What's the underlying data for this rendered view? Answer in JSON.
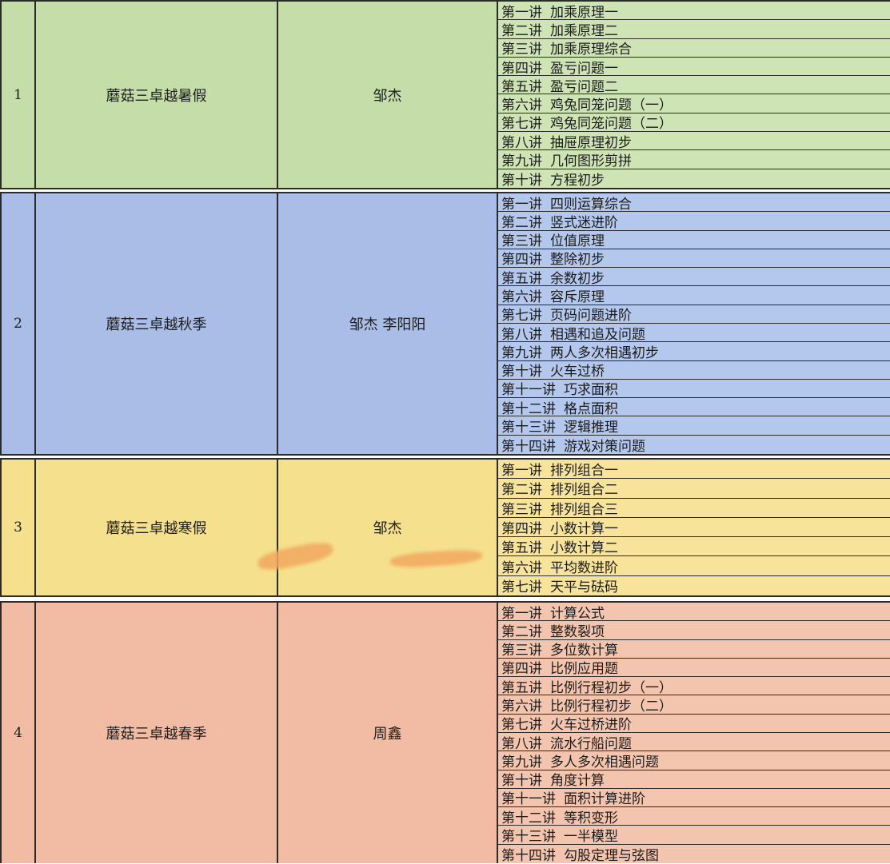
{
  "rows": [
    {
      "num": "1",
      "course": "蘑菇三卓越暑假",
      "teacher": "邹杰",
      "lessons": [
        {
          "no": "第一讲",
          "title": "加乘原理一"
        },
        {
          "no": "第二讲",
          "title": "加乘原理二"
        },
        {
          "no": "第三讲",
          "title": "加乘原理综合"
        },
        {
          "no": "第四讲",
          "title": "盈亏问题一"
        },
        {
          "no": "第五讲",
          "title": "盈亏问题二"
        },
        {
          "no": "第六讲",
          "title": "鸡兔同笼问题（一）"
        },
        {
          "no": "第七讲",
          "title": "鸡兔同笼问题（二）"
        },
        {
          "no": "第八讲",
          "title": "抽屉原理初步"
        },
        {
          "no": "第九讲",
          "title": "几何图形剪拼"
        },
        {
          "no": "第十讲",
          "title": "方程初步"
        }
      ]
    },
    {
      "num": "2",
      "course": "蘑菇三卓越秋季",
      "teacher": "邹杰  李阳阳",
      "lessons": [
        {
          "no": "第一讲",
          "title": "四则运算综合"
        },
        {
          "no": "第二讲",
          "title": "竖式迷进阶"
        },
        {
          "no": "第三讲",
          "title": "位值原理"
        },
        {
          "no": "第四讲",
          "title": "整除初步"
        },
        {
          "no": "第五讲",
          "title": "余数初步"
        },
        {
          "no": "第六讲",
          "title": "容斥原理"
        },
        {
          "no": "第七讲",
          "title": "页码问题进阶"
        },
        {
          "no": "第八讲",
          "title": "相遇和追及问题"
        },
        {
          "no": "第九讲",
          "title": "两人多次相遇初步"
        },
        {
          "no": "第十讲",
          "title": "火车过桥"
        },
        {
          "no": "第十一讲",
          "title": "巧求面积"
        },
        {
          "no": "第十二讲",
          "title": "格点面积"
        },
        {
          "no": "第十三讲",
          "title": "逻辑推理"
        },
        {
          "no": "第十四讲",
          "title": "游戏对策问题"
        }
      ]
    },
    {
      "num": "3",
      "course": "蘑菇三卓越寒假",
      "teacher": "邹杰",
      "lessons": [
        {
          "no": "第一讲",
          "title": "排列组合一"
        },
        {
          "no": "第二讲",
          "title": "排列组合二"
        },
        {
          "no": "第三讲",
          "title": "排列组合三"
        },
        {
          "no": "第四讲",
          "title": "小数计算一"
        },
        {
          "no": "第五讲",
          "title": "小数计算二"
        },
        {
          "no": "第六讲",
          "title": "平均数进阶"
        },
        {
          "no": "第七讲",
          "title": "天平与砝码"
        }
      ]
    },
    {
      "num": "4",
      "course": "蘑菇三卓越春季",
      "teacher": "周鑫",
      "lessons": [
        {
          "no": "第一讲",
          "title": "计算公式"
        },
        {
          "no": "第二讲",
          "title": "整数裂项"
        },
        {
          "no": "第三讲",
          "title": "多位数计算"
        },
        {
          "no": "第四讲",
          "title": "比例应用题"
        },
        {
          "no": "第五讲",
          "title": "比例行程初步（一）"
        },
        {
          "no": "第六讲",
          "title": "比例行程初步（二）"
        },
        {
          "no": "第七讲",
          "title": "火车过桥进阶"
        },
        {
          "no": "第八讲",
          "title": "流水行船问题"
        },
        {
          "no": "第九讲",
          "title": "多人多次相遇问题"
        },
        {
          "no": "第十讲",
          "title": "角度计算"
        },
        {
          "no": "第十一讲",
          "title": "面积计算进阶"
        },
        {
          "no": "第十二讲",
          "title": "等积变形"
        },
        {
          "no": "第十三讲",
          "title": "一半模型"
        },
        {
          "no": "第十四讲",
          "title": "勾股定理与弦图"
        }
      ]
    }
  ],
  "colors": {
    "row1": "#c5dea9",
    "row2": "#a9bde6",
    "row3": "#f5e08e",
    "row4": "#f2bca4"
  }
}
